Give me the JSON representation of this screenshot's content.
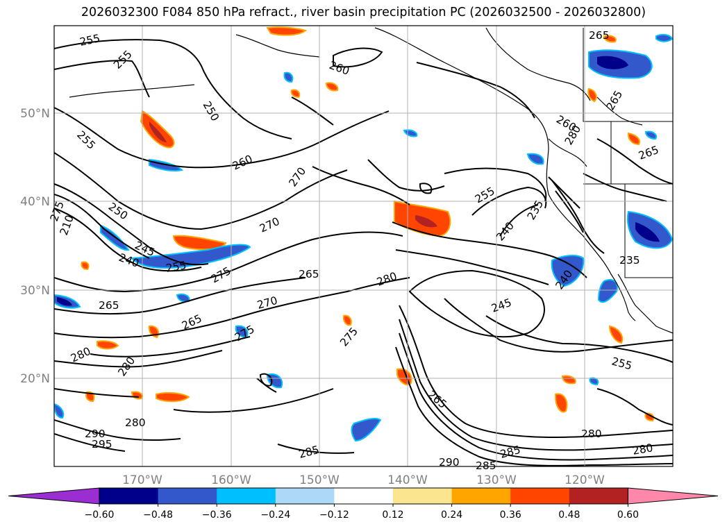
{
  "title": "2026032300 F084 850 hPa refract., river basin precipitation PC (2026032500 - 2026032800)",
  "map": {
    "lat_labels": [
      "50°N",
      "40°N",
      "30°N",
      "20°N"
    ],
    "lon_labels": [
      "170°W",
      "160°W",
      "150°W",
      "140°W",
      "130°W",
      "120°W"
    ],
    "contour_labels": [
      "255",
      "255",
      "255",
      "250",
      "260",
      "260",
      "270",
      "250",
      "275",
      "210",
      "245",
      "240",
      "255",
      "270",
      "275",
      "265",
      "280",
      "265",
      "270",
      "265",
      "275",
      "275",
      "280",
      "280",
      "280",
      "290",
      "295",
      "285",
      "255",
      "240",
      "235",
      "245",
      "240",
      "265",
      "280",
      "290",
      "285",
      "285",
      "280",
      "255",
      "265",
      "265",
      "265",
      "280",
      "235",
      "260"
    ]
  },
  "colorbar": {
    "colors": [
      "#9a2ed2",
      "#00008b",
      "#3358cc",
      "#00bfff",
      "#add8f8",
      "#ffffff",
      "#fbe58f",
      "#ffa500",
      "#ff4500",
      "#b22222",
      "#ff88aa"
    ],
    "tick_labels": [
      "−0.60",
      "−0.48",
      "−0.36",
      "−0.24",
      "−0.12",
      "0.12",
      "0.24",
      "0.36",
      "0.48",
      "0.60"
    ]
  }
}
